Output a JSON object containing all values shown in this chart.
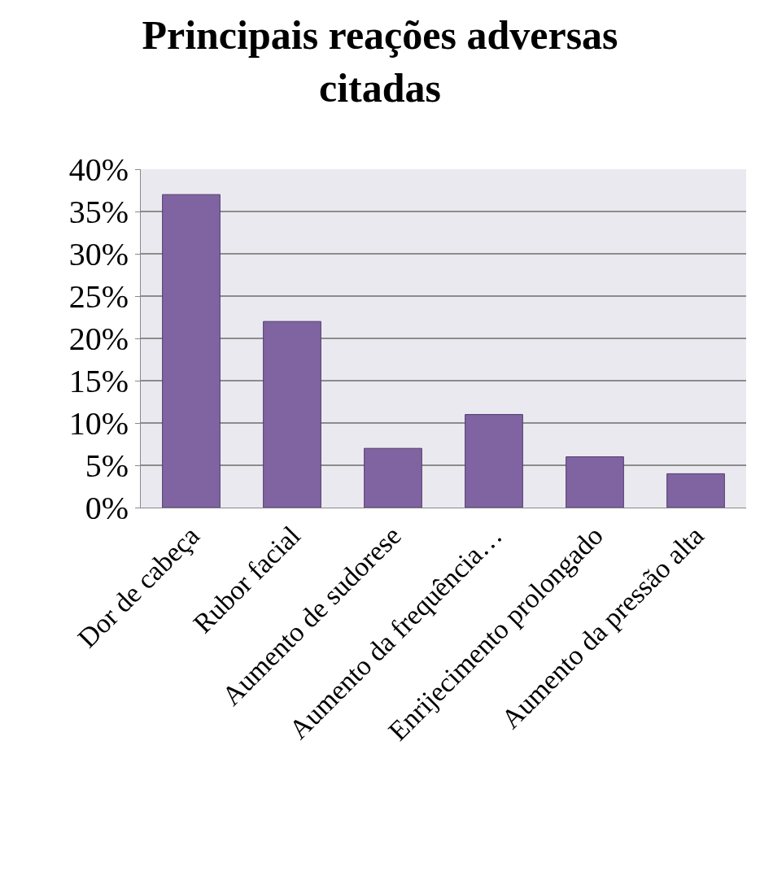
{
  "chart_data": {
    "type": "bar",
    "title": "Principais reações adversas citadas",
    "categories": [
      "Dor de cabeça",
      "Rubor facial",
      "Aumento de sudorese",
      "Aumento da frequência…",
      "Enrijecimento prolongado",
      "Aumento da pressão alta"
    ],
    "values": [
      37,
      22,
      7,
      11,
      6,
      4
    ],
    "color": "#8064a2",
    "ylim": [
      0,
      40
    ],
    "yticks": [
      {
        "value": 0,
        "label": "0%"
      },
      {
        "value": 5,
        "label": "5%"
      },
      {
        "value": 10,
        "label": "10%"
      },
      {
        "value": 15,
        "label": "15%"
      },
      {
        "value": 20,
        "label": "20%"
      },
      {
        "value": 25,
        "label": "25%"
      },
      {
        "value": 30,
        "label": "30%"
      },
      {
        "value": 35,
        "label": "35%"
      },
      {
        "value": 40,
        "label": "40%"
      }
    ],
    "grid": "y"
  }
}
